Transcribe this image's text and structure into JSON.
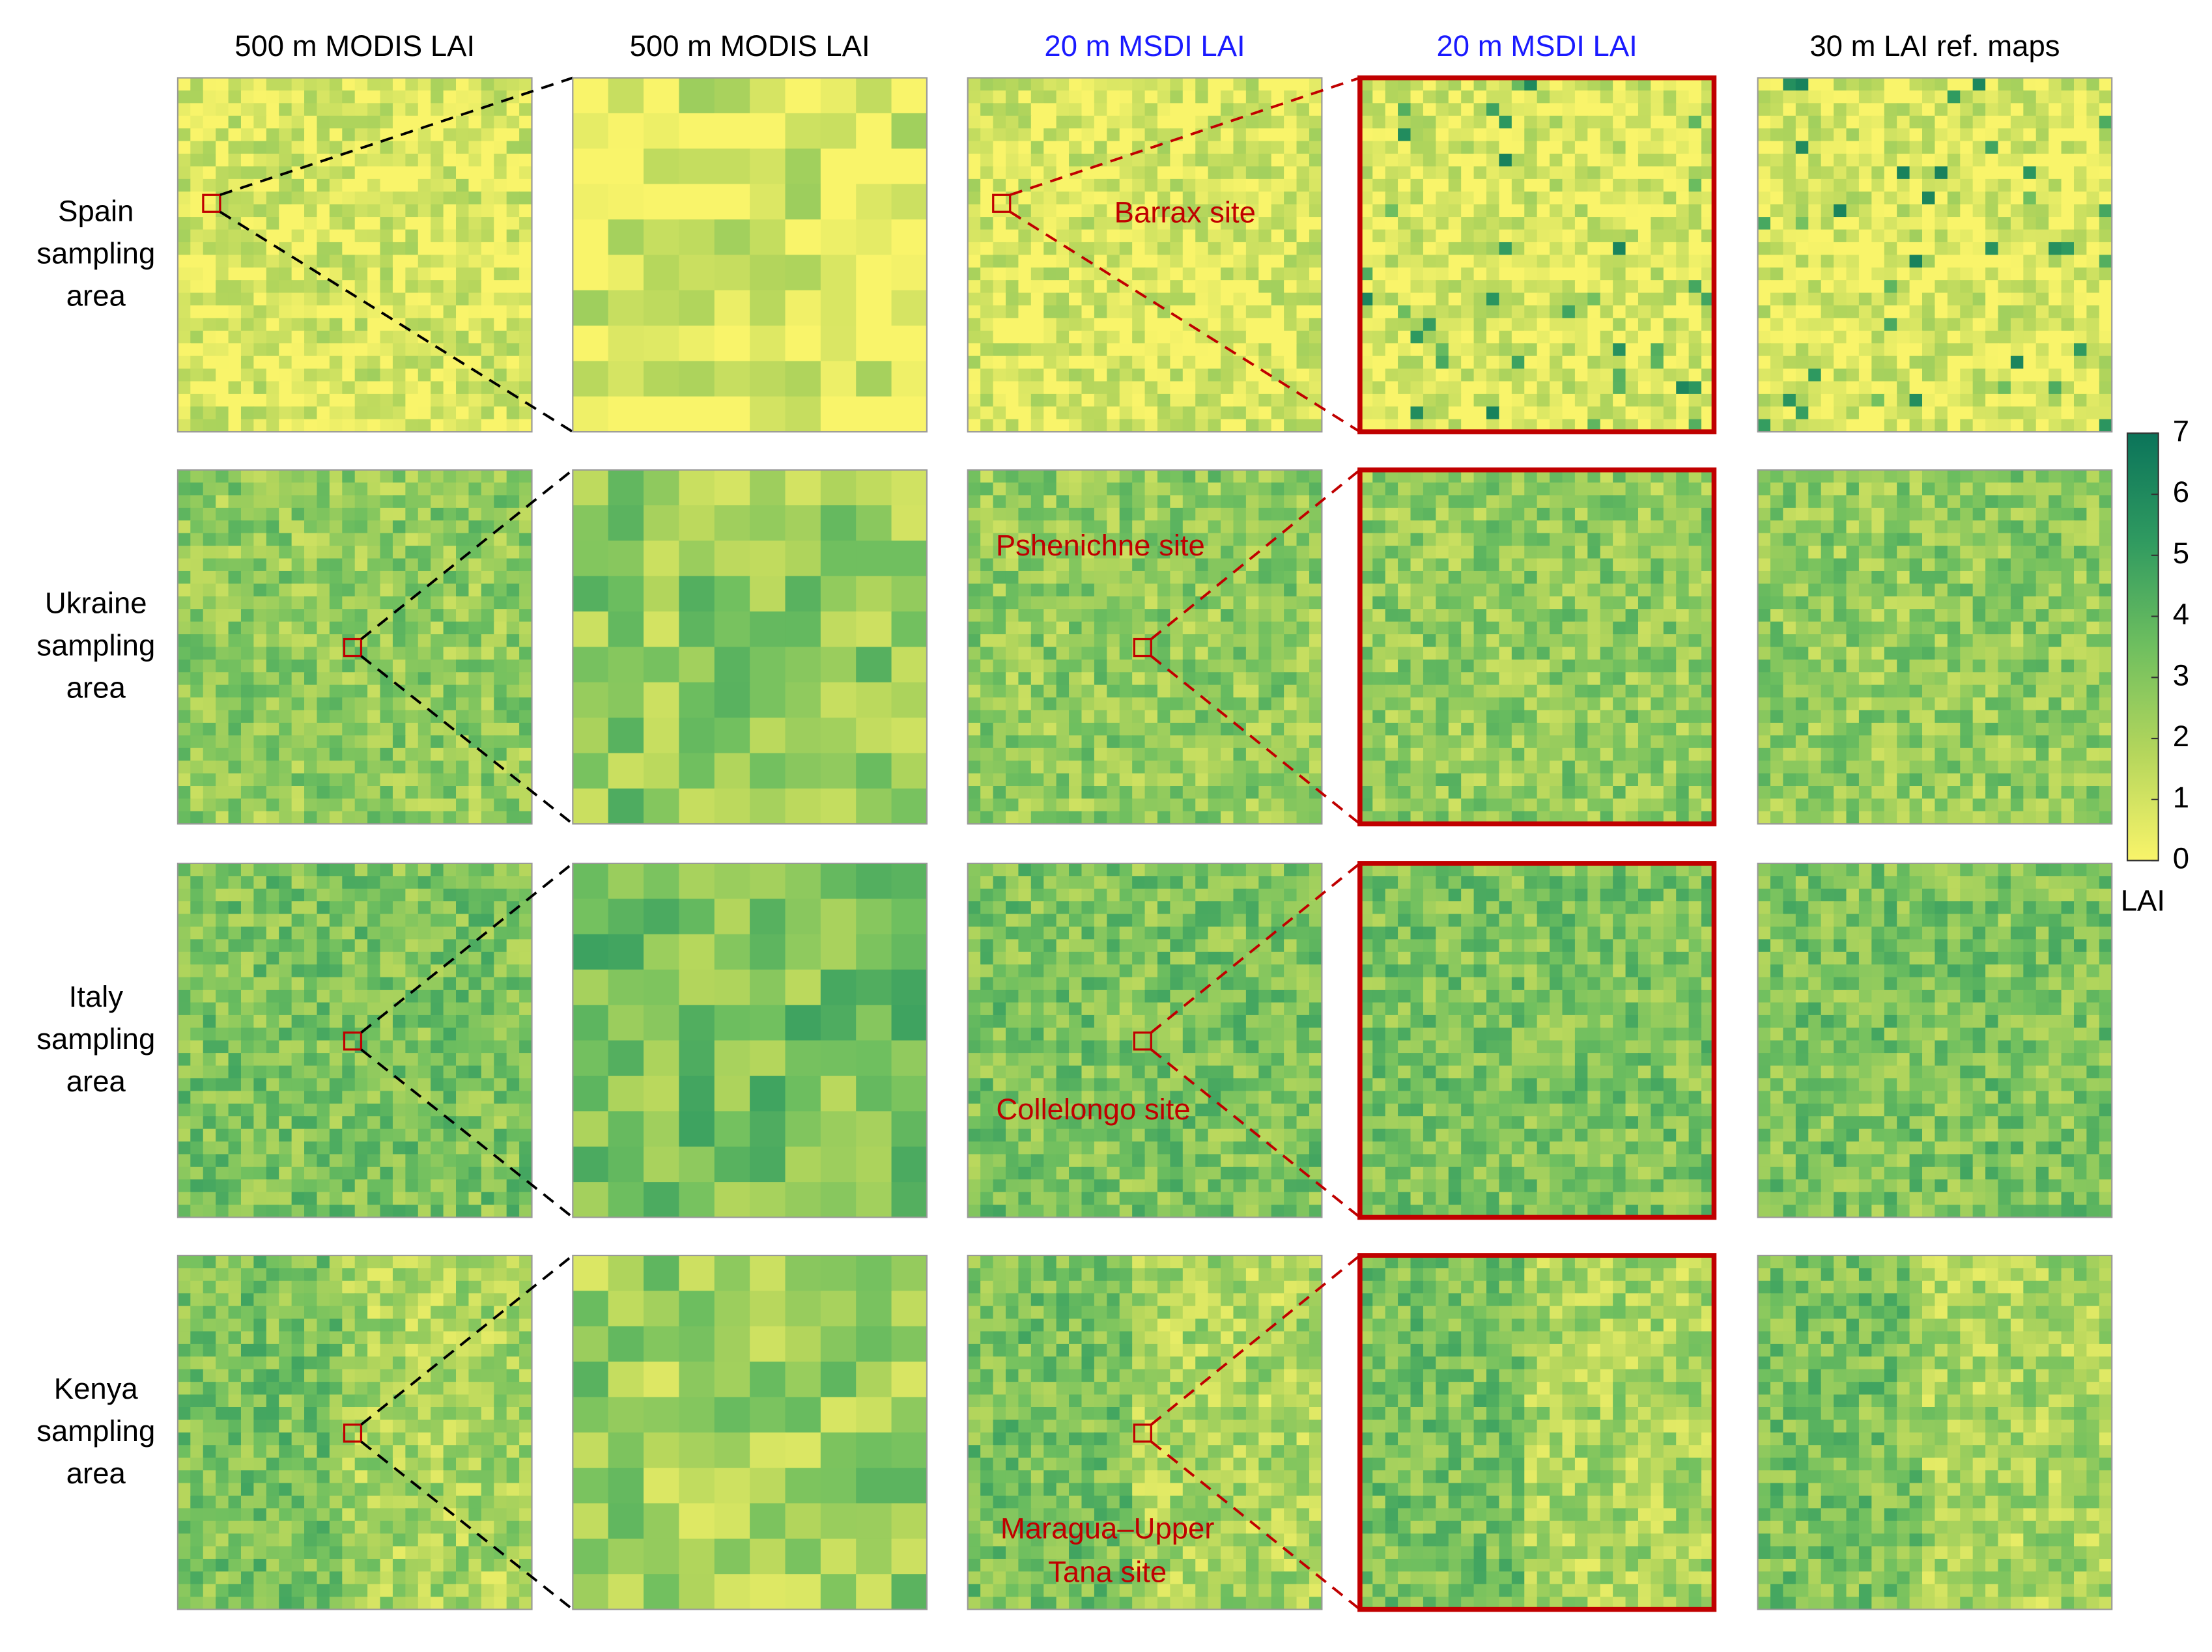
{
  "columns": [
    "500 m MODIS LAI",
    "500 m MODIS LAI",
    "20 m MSDI LAI",
    "20 m MSDI LAI",
    "30 m LAI ref. maps"
  ],
  "column_colors": [
    "#000000",
    "#000000",
    "#1a1aff",
    "#1a1aff",
    "#000000"
  ],
  "rows": [
    {
      "label": [
        "Spain",
        "sampling",
        "area"
      ],
      "site": [
        "Barrax site"
      ]
    },
    {
      "label": [
        "Ukraine",
        "sampling",
        "area"
      ],
      "site": [
        "Pshenichne site"
      ]
    },
    {
      "label": [
        "Italy",
        "sampling",
        "area"
      ],
      "site": [
        "Collelongo site"
      ]
    },
    {
      "label": [
        "Kenya",
        "sampling",
        "area"
      ],
      "site": [
        "Maragua–Upper",
        "Tana site"
      ]
    }
  ],
  "colorbar": {
    "label": "LAI",
    "lim": [
      0,
      7
    ],
    "ticks": [
      0,
      1,
      2,
      3,
      4,
      5,
      6,
      7
    ],
    "colors": [
      "#f9f46a",
      "#b5d65c",
      "#6fbf5f",
      "#2f9a60",
      "#0b745a"
    ]
  }
}
